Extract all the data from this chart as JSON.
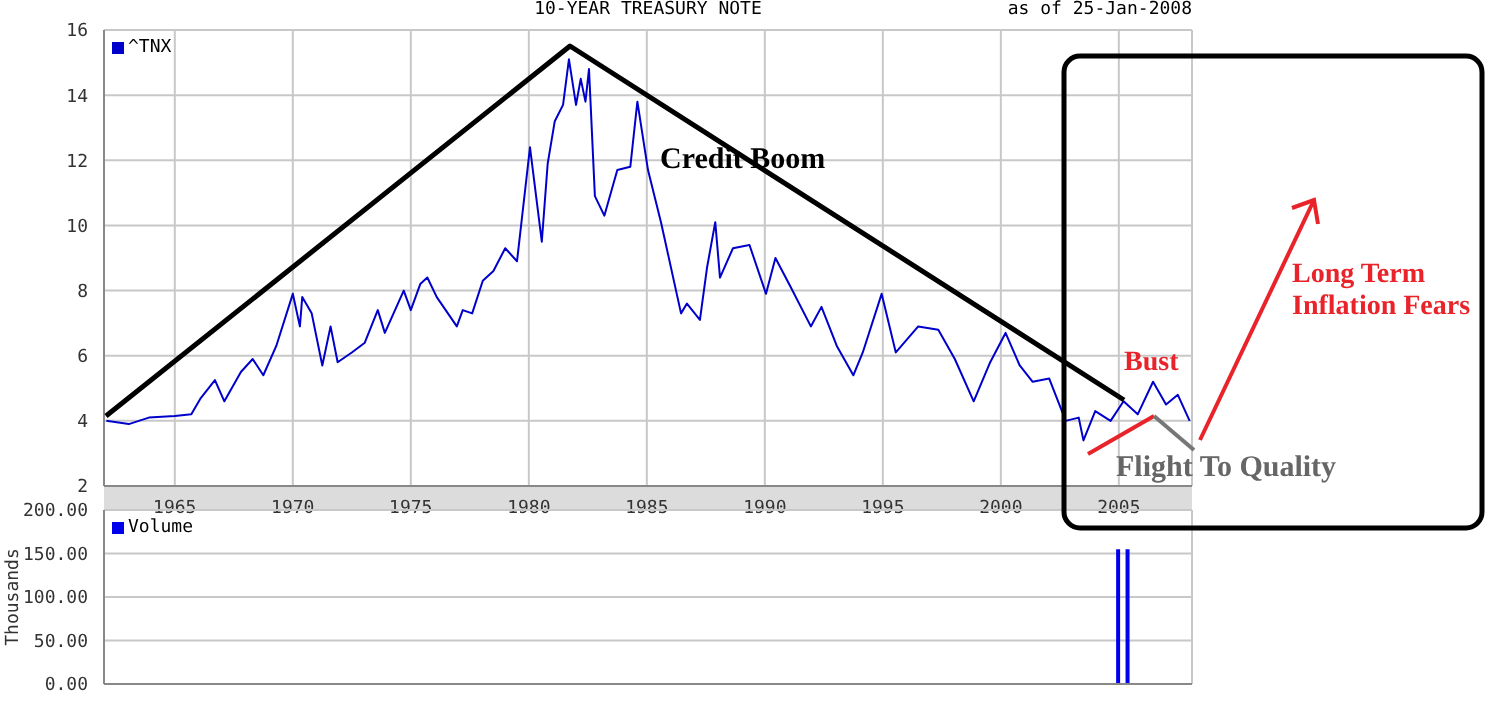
{
  "chart_data": [
    {
      "type": "line",
      "title": "10-YEAR TREASURY NOTE",
      "subtitle": "as of 25-Jan-2008",
      "series": [
        {
          "name": "^TNX",
          "color": "#0000cc",
          "x": [
            1962.1,
            1963.05,
            1963.9,
            1965,
            1965.7,
            1966.1,
            1966.7,
            1967.1,
            1967.8,
            1968.3,
            1968.75,
            1969.3,
            1970,
            1970.3,
            1970.4,
            1970.8,
            1971.25,
            1971.6,
            1971.9,
            1972.5,
            1973.05,
            1973.6,
            1973.9,
            1974.7,
            1975,
            1975.4,
            1975.7,
            1976.1,
            1976.95,
            1977.2,
            1977.6,
            1978.05,
            1978.5,
            1979,
            1979.5,
            1980.05,
            1980.55,
            1980.8,
            1981.1,
            1981.45,
            1981.7,
            1982,
            1982.2,
            1982.4,
            1982.55,
            1982.8,
            1983.2,
            1983.75,
            1984.3,
            1984.6,
            1985.05,
            1985.6,
            1986.45,
            1986.7,
            1987.25,
            1987.55,
            1987.9,
            1988.1,
            1988.65,
            1989.35,
            1990.05,
            1990.45,
            1991.1,
            1991.95,
            1992.4,
            1993.05,
            1993.75,
            1994.15,
            1994.95,
            1995.55,
            1996.5,
            1997.35,
            1998.05,
            1998.85,
            1999.55,
            2000.2,
            2000.8,
            2001.35,
            2002.05,
            2002.75,
            2003.3,
            2003.5,
            2004,
            2004.65,
            2005.2,
            2005.8,
            2006.45,
            2007,
            2007.5,
            2008
          ],
          "values": [
            4.0,
            3.9,
            4.1,
            4.15,
            4.2,
            4.7,
            5.25,
            4.6,
            5.5,
            5.9,
            5.4,
            6.3,
            7.9,
            6.9,
            7.8,
            7.3,
            5.7,
            6.9,
            5.8,
            6.1,
            6.4,
            7.4,
            6.7,
            8.0,
            7.4,
            8.2,
            8.4,
            7.8,
            6.9,
            7.4,
            7.3,
            8.3,
            8.6,
            9.3,
            8.9,
            12.4,
            9.5,
            11.9,
            13.2,
            13.7,
            15.1,
            13.7,
            14.5,
            13.8,
            14.8,
            10.9,
            10.3,
            11.7,
            11.8,
            13.8,
            11.7,
            10.1,
            7.3,
            7.6,
            7.1,
            8.7,
            10.1,
            8.4,
            9.3,
            9.4,
            7.9,
            9.0,
            8.1,
            6.9,
            7.5,
            6.3,
            5.4,
            6.1,
            7.9,
            6.1,
            6.9,
            6.8,
            5.9,
            4.6,
            5.8,
            6.7,
            5.7,
            5.2,
            5.3,
            4.0,
            4.1,
            3.4,
            4.3,
            4.0,
            4.6,
            4.2,
            5.2,
            4.5,
            4.8,
            4.0
          ]
        }
      ],
      "xlim": [
        1962,
        2008.1
      ],
      "xticks": [
        1965,
        1970,
        1975,
        1980,
        1985,
        1990,
        1995,
        2000,
        2005
      ],
      "ylim": [
        2,
        16
      ],
      "yticks": [
        2,
        4,
        6,
        8,
        10,
        12,
        14,
        16
      ],
      "grid": true,
      "legend": "top left",
      "annotations": [
        "Credit Boom",
        "Bust",
        "Flight To Quality",
        "Long Term Inflation Fears"
      ]
    },
    {
      "type": "bar",
      "ylabel": "Thousands",
      "series": [
        {
          "name": "Volume",
          "color": "#0000ee",
          "x": [
            2005.0,
            2005.4
          ],
          "values": [
            155,
            155
          ]
        }
      ],
      "xlim": [
        1962,
        2008.1
      ],
      "xticks": [
        1965,
        1970,
        1975,
        1980,
        1985,
        1990,
        1995,
        2000,
        2005
      ],
      "ylim": [
        0,
        200
      ],
      "yticks": [
        {
          "value": 0,
          "label": "0.00"
        },
        {
          "value": 50,
          "label": "50.00"
        },
        {
          "value": 100,
          "label": "100.00"
        },
        {
          "value": 150,
          "label": "150.00"
        },
        {
          "value": 200,
          "label": "200.00"
        }
      ],
      "grid": true,
      "legend": "top left",
      "tick_labels": "y"
    }
  ]
}
